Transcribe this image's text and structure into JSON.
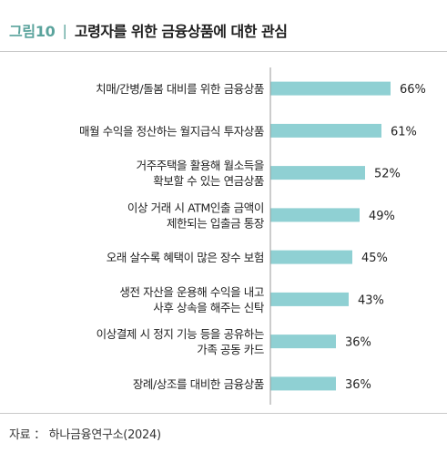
{
  "header": {
    "figure_label": "그림10",
    "separator": "|",
    "title": "고령자를 위한 금융상품에 대한 관심"
  },
  "source": "자료 ： 하나금융연구소(2024)",
  "colors": {
    "bar": "#8fd0d3",
    "accent": "#5aa39c",
    "axis": "#9a9a9a"
  },
  "chart_data": {
    "type": "bar",
    "orientation": "horizontal",
    "categories": [
      [
        "치매/간병/돌봄 대비를 위한 금융상품"
      ],
      [
        "매월 수익을 정산하는 월지급식 투자상품"
      ],
      [
        "거주주택을 활용해 월소득을",
        "확보할 수 있는 연금상품"
      ],
      [
        "이상 거래 시 ATM인출 금액이",
        "제한되는 입출금 통장"
      ],
      [
        "오래 살수록 혜택이 많은 장수 보험"
      ],
      [
        "생전 자산을 운용해 수익을 내고",
        "사후 상속을 해주는 신탁"
      ],
      [
        "이상결제 시 정지 기능 등을 공유하는",
        "가족 공동 카드"
      ],
      [
        "장례/상조를 대비한 금융상품"
      ]
    ],
    "values": [
      66,
      61,
      52,
      49,
      45,
      43,
      36,
      36
    ],
    "value_labels": [
      "66%",
      "61%",
      "52%",
      "49%",
      "45%",
      "43%",
      "36%",
      "36%"
    ],
    "unit": "%",
    "xlim": [
      0,
      100
    ],
    "grid": false,
    "legend": "none"
  }
}
